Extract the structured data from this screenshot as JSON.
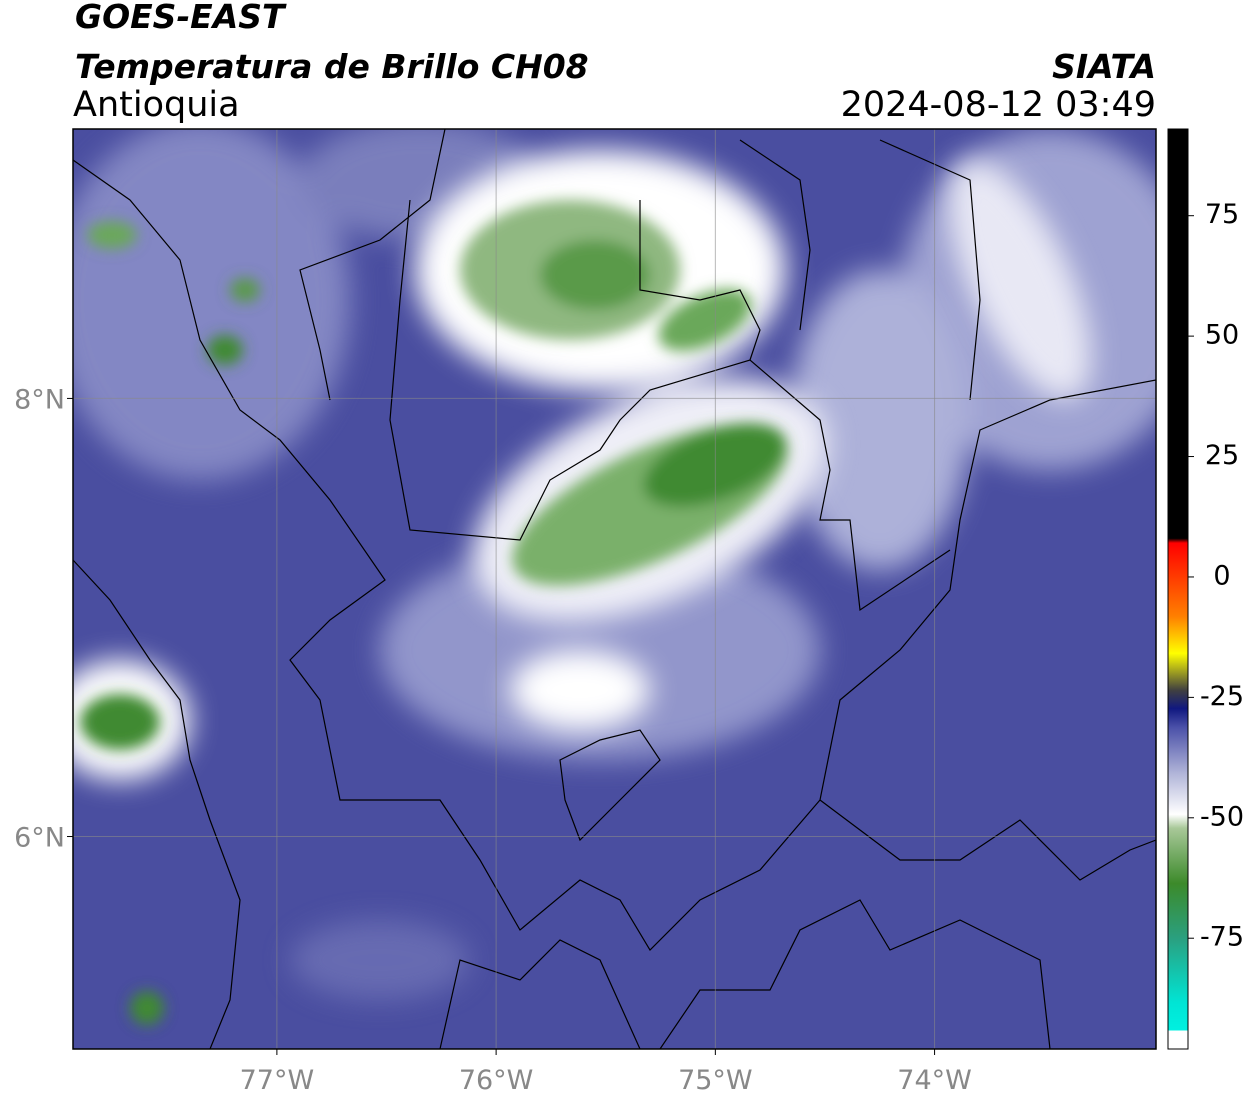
{
  "header": {
    "satellite": "GOES-EAST",
    "product": "Temperatura de Brillo CH08",
    "region": "Antioquia",
    "source": "SIATA",
    "datetime": "2024-08-12 03:49"
  },
  "chart_data": {
    "type": "map",
    "xlim": [
      -77.93,
      -72.99
    ],
    "ylim": [
      5.03,
      9.23
    ],
    "xticks": [
      {
        "value": -77,
        "label": "77°W"
      },
      {
        "value": -76,
        "label": "76°W"
      },
      {
        "value": -75,
        "label": "75°W"
      },
      {
        "value": -74,
        "label": "74°W"
      }
    ],
    "yticks": [
      {
        "value": 6,
        "label": "6°N"
      },
      {
        "value": 8,
        "label": "8°N"
      }
    ],
    "grid": true,
    "colorbar": {
      "lim": [
        -98,
        93
      ],
      "ticks": [
        -75,
        -50,
        -25,
        0,
        25,
        50,
        75
      ]
    }
  }
}
